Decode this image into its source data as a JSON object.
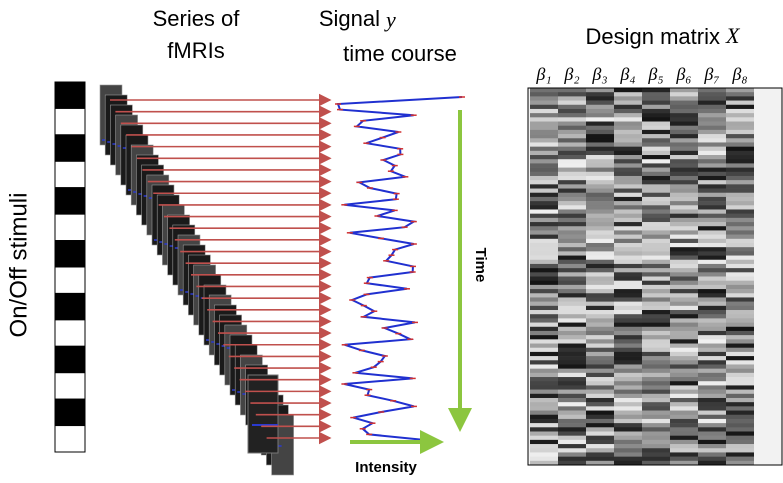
{
  "stimulus": {
    "label": "On/Off stimuli"
  },
  "fmri": {
    "title_line1": "Series of",
    "title_line2": "fMRIs"
  },
  "signal": {
    "title_line1": "Signal",
    "variable": "y",
    "title_line2": "time course",
    "time_label": "Time",
    "intensity_label": "Intensity"
  },
  "design_matrix": {
    "title": "Design matrix",
    "variable": "X",
    "columns": [
      "β₁",
      "β₂",
      "β₃",
      "β₄",
      "β₅",
      "β₆",
      "β₇",
      "β₈"
    ]
  }
}
